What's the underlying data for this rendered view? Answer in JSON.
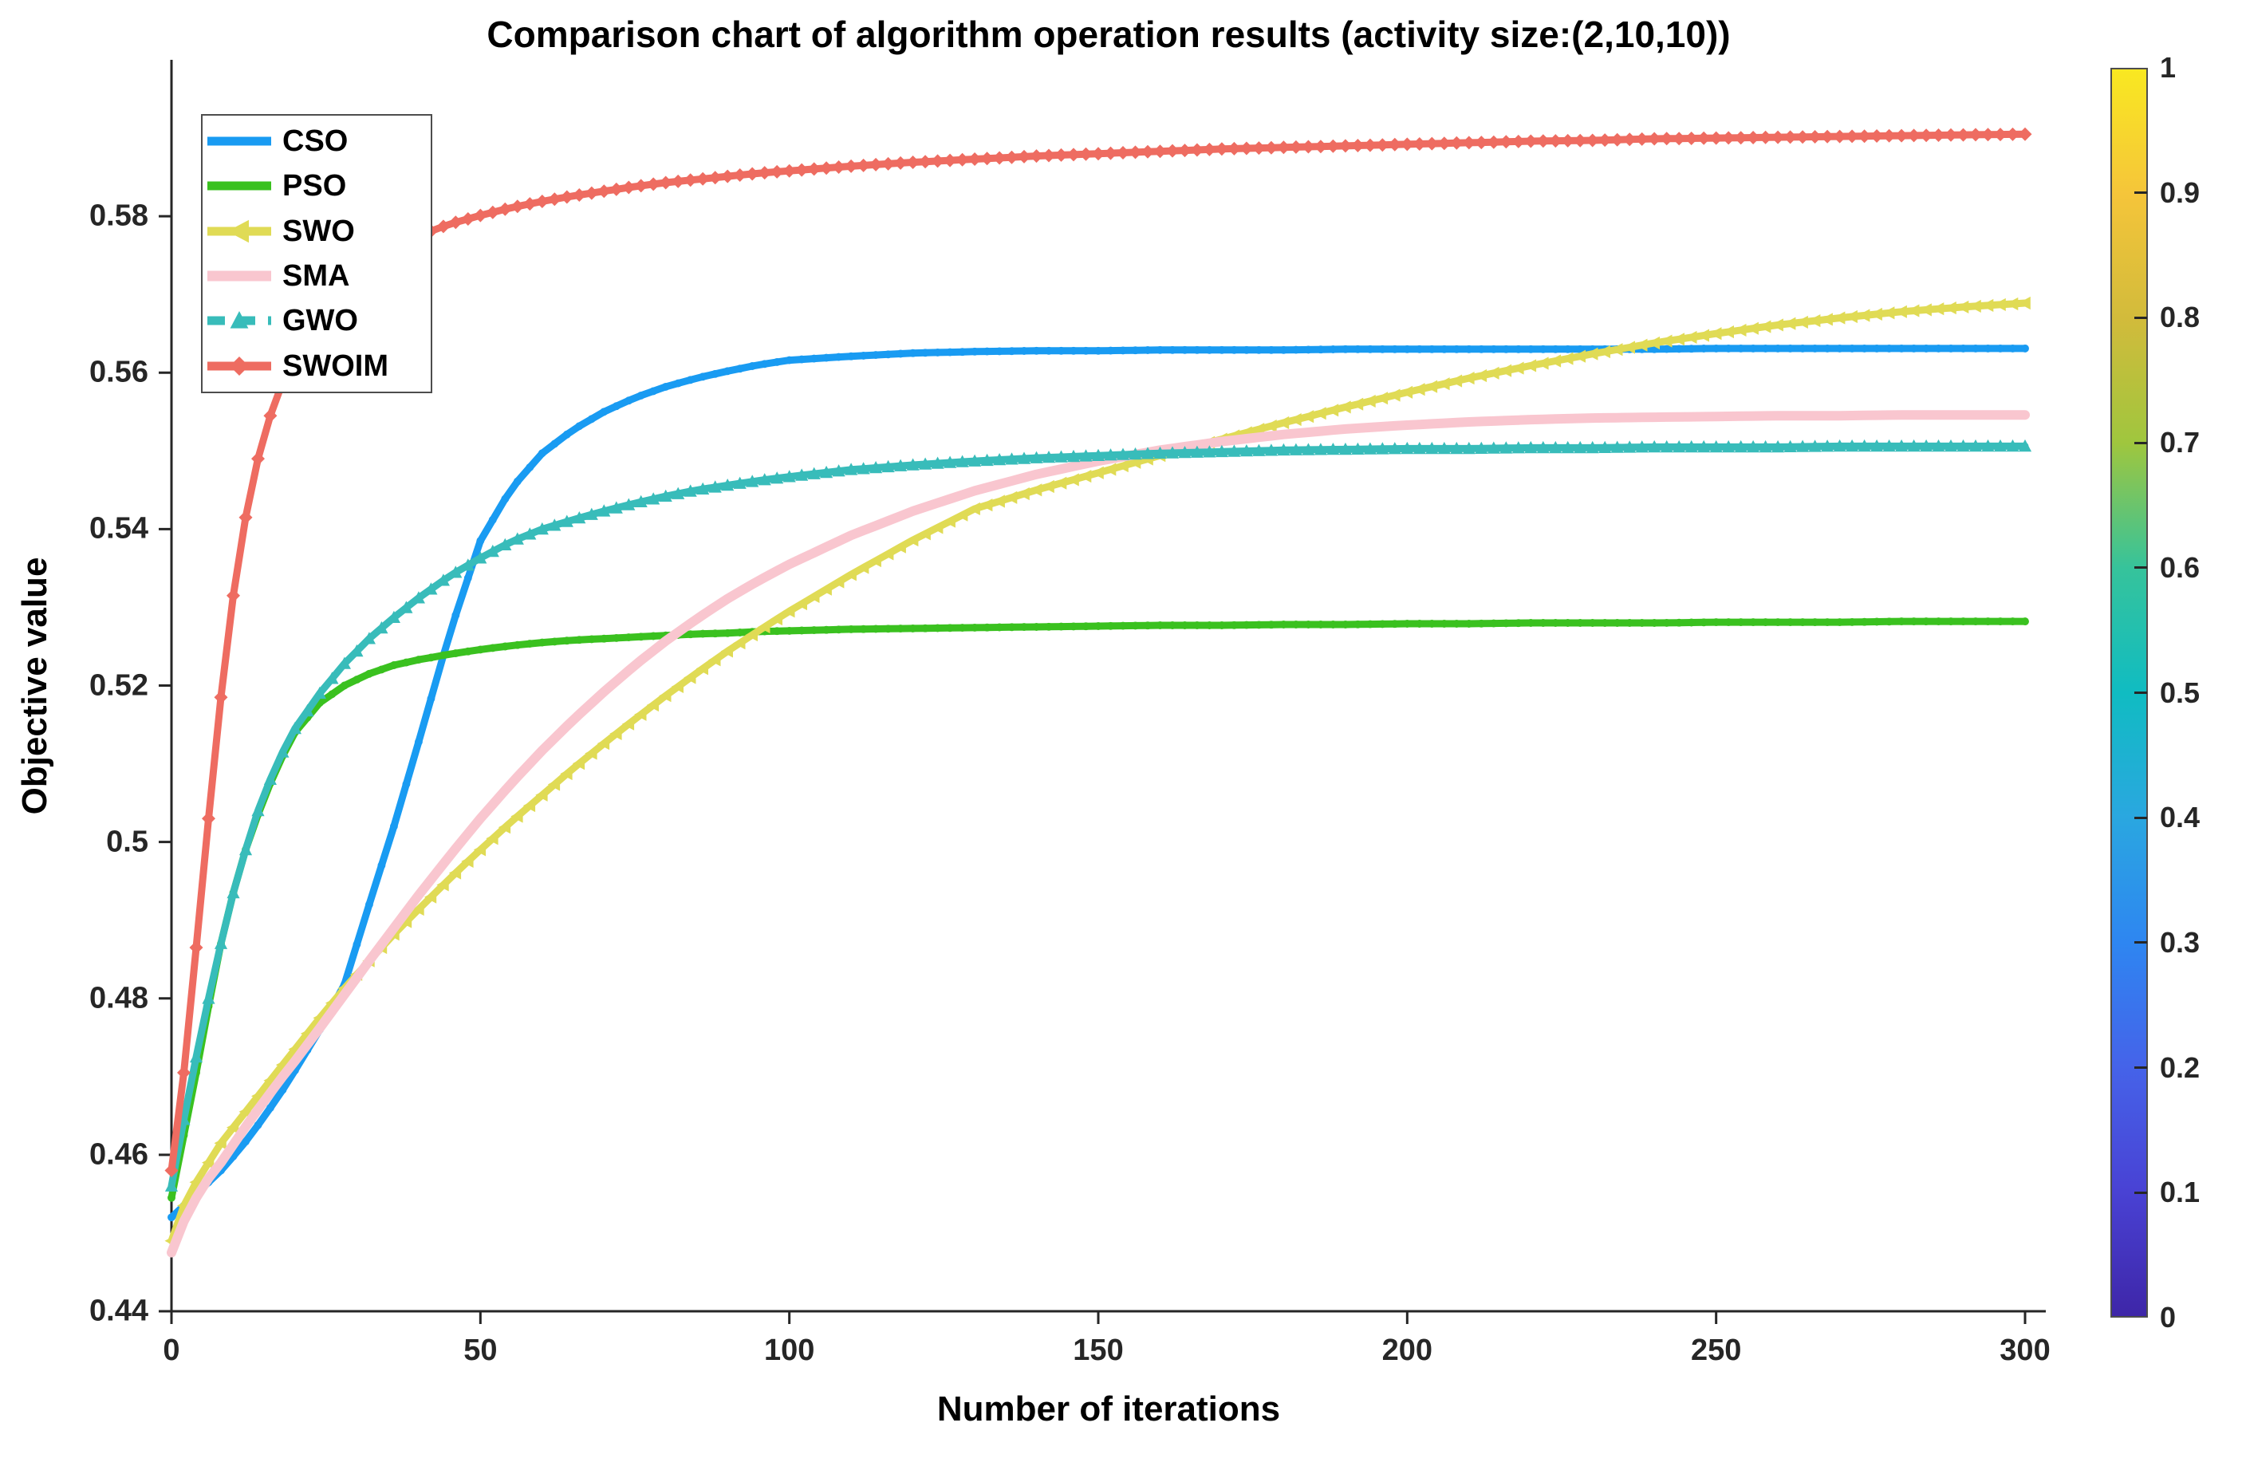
{
  "chart_data": {
    "type": "line",
    "title": "Comparison chart of algorithm operation results (activity size:(2,10,10))",
    "xlabel": "Number of iterations",
    "ylabel": "Objective value",
    "xlim": [
      0,
      300
    ],
    "ylim": [
      0.44,
      0.6
    ],
    "x_ticks": [
      "0",
      "50",
      "100",
      "150",
      "200",
      "250",
      "300"
    ],
    "y_ticks": [
      "0.44",
      "0.46",
      "0.48",
      "0.5",
      "0.52",
      "0.54",
      "0.56",
      "0.58"
    ],
    "grid": "off",
    "legend_position": "top-left",
    "x": [
      0,
      2,
      4,
      6,
      8,
      10,
      12,
      14,
      16,
      18,
      20,
      24,
      28,
      32,
      36,
      40,
      45,
      50,
      55,
      60,
      65,
      70,
      75,
      80,
      85,
      90,
      95,
      100,
      110,
      120,
      130,
      140,
      150,
      160,
      170,
      180,
      190,
      200,
      210,
      220,
      230,
      240,
      250,
      260,
      270,
      280,
      290,
      300
    ],
    "series": [
      {
        "name": "CSO",
        "color": "#199bf2",
        "marker": "point",
        "line_style": "solid",
        "values": [
          0.452,
          0.4535,
          0.455,
          0.4565,
          0.458,
          0.4598,
          0.4617,
          0.4638,
          0.466,
          0.4683,
          0.4708,
          0.476,
          0.4818,
          0.492,
          0.502,
          0.5128,
          0.5266,
          0.5385,
          0.5452,
          0.5497,
          0.5527,
          0.555,
          0.5568,
          0.5582,
          0.5593,
          0.5602,
          0.561,
          0.5616,
          0.5621,
          0.5625,
          0.5627,
          0.5628,
          0.5628,
          0.5629,
          0.5629,
          0.5629,
          0.563,
          0.563,
          0.563,
          0.563,
          0.563,
          0.563,
          0.5631,
          0.5631,
          0.5631,
          0.5631,
          0.5631,
          0.5631
        ]
      },
      {
        "name": "PSO",
        "color": "#3ac11f",
        "marker": "point",
        "line_style": "solid",
        "values": [
          0.4545,
          0.4625,
          0.4705,
          0.479,
          0.487,
          0.4935,
          0.499,
          0.5035,
          0.5075,
          0.511,
          0.514,
          0.5178,
          0.52,
          0.5215,
          0.5226,
          0.5233,
          0.524,
          0.5246,
          0.5251,
          0.5255,
          0.5258,
          0.526,
          0.5262,
          0.5264,
          0.5266,
          0.5267,
          0.5269,
          0.527,
          0.5272,
          0.5273,
          0.5274,
          0.5275,
          0.5276,
          0.5277,
          0.5277,
          0.5278,
          0.5278,
          0.5279,
          0.5279,
          0.528,
          0.528,
          0.528,
          0.5281,
          0.5281,
          0.5281,
          0.5282,
          0.5282,
          0.5282
        ]
      },
      {
        "name": "SWO",
        "color": "#e0db55",
        "marker": "triangle-left",
        "line_style": "solid",
        "values": [
          0.449,
          0.4535,
          0.4565,
          0.459,
          0.4615,
          0.4635,
          0.4655,
          0.4675,
          0.4695,
          0.4715,
          0.4735,
          0.4775,
          0.4813,
          0.4848,
          0.4882,
          0.4914,
          0.4953,
          0.499,
          0.5026,
          0.506,
          0.5094,
          0.5126,
          0.5157,
          0.5187,
          0.5216,
          0.5244,
          0.527,
          0.5295,
          0.5342,
          0.5386,
          0.5426,
          0.545,
          0.5472,
          0.5494,
          0.5515,
          0.5536,
          0.5556,
          0.5575,
          0.5593,
          0.5609,
          0.5624,
          0.5638,
          0.565,
          0.5661,
          0.567,
          0.5678,
          0.5684,
          0.5689
        ]
      },
      {
        "name": "SMA",
        "color": "#f9c6cf",
        "marker": "none",
        "line_style": "solid",
        "values": [
          0.4475,
          0.4515,
          0.4545,
          0.457,
          0.459,
          0.4613,
          0.4636,
          0.4658,
          0.4679,
          0.47,
          0.472,
          0.4762,
          0.4805,
          0.4848,
          0.489,
          0.4932,
          0.4982,
          0.503,
          0.5075,
          0.5117,
          0.5156,
          0.5192,
          0.5226,
          0.5257,
          0.5285,
          0.5311,
          0.5334,
          0.5355,
          0.5392,
          0.5423,
          0.5449,
          0.547,
          0.5487,
          0.5501,
          0.5512,
          0.5521,
          0.5528,
          0.5533,
          0.5537,
          0.554,
          0.5542,
          0.5543,
          0.5544,
          0.5545,
          0.5545,
          0.5546,
          0.5546,
          0.5546
        ]
      },
      {
        "name": "GWO",
        "color": "#38bcba",
        "marker": "triangle-up",
        "line_style": "dashed",
        "values": [
          0.456,
          0.4645,
          0.4725,
          0.48,
          0.487,
          0.4935,
          0.499,
          0.504,
          0.508,
          0.5115,
          0.5145,
          0.519,
          0.5228,
          0.526,
          0.5287,
          0.5312,
          0.534,
          0.5363,
          0.5384,
          0.54,
          0.5412,
          0.5423,
          0.5433,
          0.5442,
          0.545,
          0.5456,
          0.5462,
          0.5467,
          0.5476,
          0.5482,
          0.5487,
          0.5491,
          0.5494,
          0.5497,
          0.5499,
          0.5501,
          0.5502,
          0.5503,
          0.5503,
          0.5504,
          0.5504,
          0.5505,
          0.5505,
          0.5505,
          0.5506,
          0.5506,
          0.5506,
          0.5506
        ]
      },
      {
        "name": "SWOIM",
        "color": "#ee6c61",
        "marker": "diamond",
        "line_style": "solid",
        "values": [
          0.458,
          0.4705,
          0.4865,
          0.503,
          0.5185,
          0.5315,
          0.5415,
          0.549,
          0.5545,
          0.5588,
          0.5622,
          0.567,
          0.5706,
          0.5734,
          0.5757,
          0.5775,
          0.579,
          0.5801,
          0.5811,
          0.5819,
          0.5826,
          0.5832,
          0.5838,
          0.5843,
          0.5847,
          0.5851,
          0.5855,
          0.5858,
          0.5864,
          0.5869,
          0.5873,
          0.5877,
          0.588,
          0.5883,
          0.5886,
          0.5888,
          0.589,
          0.5892,
          0.5894,
          0.5896,
          0.5897,
          0.5899,
          0.59,
          0.5901,
          0.5902,
          0.5903,
          0.5904,
          0.5905
        ]
      }
    ],
    "colorbar": {
      "min": 0,
      "max": 1,
      "ticks": [
        "0",
        "0.1",
        "0.2",
        "0.3",
        "0.4",
        "0.5",
        "0.6",
        "0.7",
        "0.8",
        "0.9",
        "1"
      ],
      "colormap": "parula",
      "gradient": [
        {
          "at": 0.0,
          "color": "#3e26a8"
        },
        {
          "at": 0.1,
          "color": "#4942d4"
        },
        {
          "at": 0.2,
          "color": "#4563e9"
        },
        {
          "at": 0.3,
          "color": "#2e86f1"
        },
        {
          "at": 0.4,
          "color": "#2aa7e0"
        },
        {
          "at": 0.5,
          "color": "#10bcc2"
        },
        {
          "at": 0.6,
          "color": "#36c39b"
        },
        {
          "at": 0.7,
          "color": "#9fc63e"
        },
        {
          "at": 0.8,
          "color": "#d2bb3b"
        },
        {
          "at": 0.9,
          "color": "#f5c53a"
        },
        {
          "at": 1.0,
          "color": "#f9e821"
        }
      ]
    }
  },
  "legend": {
    "items": [
      "CSO",
      "PSO",
      "SWO",
      "SMA",
      "GWO",
      "SWOIM"
    ]
  },
  "style": {
    "axis_color": "#262626",
    "background": "#ffffff"
  }
}
